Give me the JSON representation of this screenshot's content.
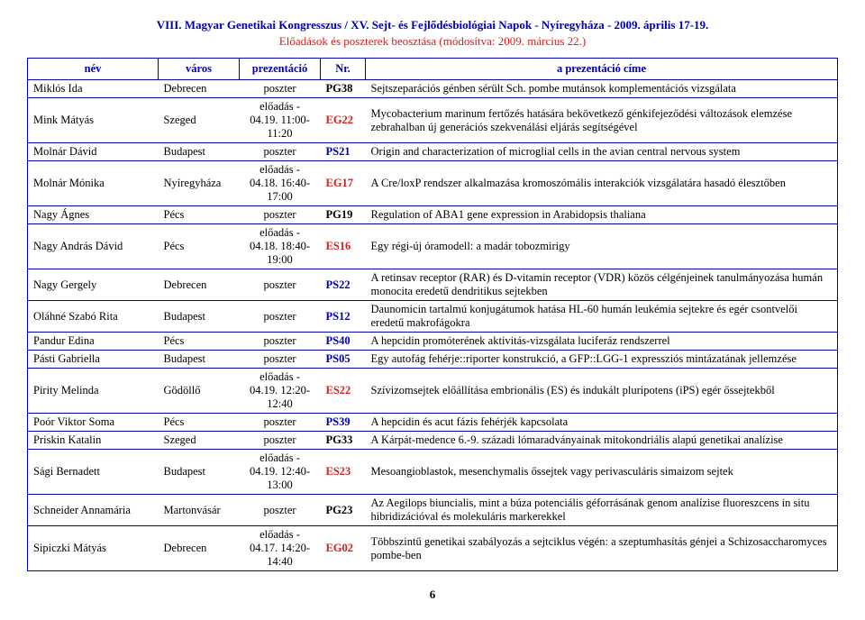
{
  "header": {
    "title": "VIII. Magyar Genetikai Kongresszus / XV. Sejt- és Fejlődésbiológiai Napok - Nyíregyháza - 2009. április 17-19.",
    "subtitle": "Előadások és poszterek beosztása (módosítva: 2009. március 22.)"
  },
  "columns": {
    "c1": "név",
    "c2": "város",
    "c3": "prezentáció",
    "c4": "Nr.",
    "c5": "a prezentáció címe"
  },
  "rows": [
    {
      "nev": "Miklós Ida",
      "varos": "Debrecen",
      "prez": "poszter",
      "nr": "PG38",
      "nrclass": "nr-black",
      "cim": "Sejtszeparációs génben sérült Sch. pombe mutánsok komplementációs vizsgálata"
    },
    {
      "nev": "Mink Mátyás",
      "varos": "Szeged",
      "prez": "előadás - 04.19. 11:00-11:20",
      "nr": "EG22",
      "nrclass": "nr-red",
      "cim": "Mycobacterium marinum fertőzés hatására bekövetkező génkifejeződési változások elemzése zebrahalban új generációs szekvenálási eljárás segítségével"
    },
    {
      "nev": "Molnár Dávid",
      "varos": "Budapest",
      "prez": "poszter",
      "nr": "PS21",
      "nrclass": "nr-blue",
      "cim": "Origin and characterization of microglial cells in the avian central nervous system"
    },
    {
      "nev": "Molnár Mónika",
      "varos": "Nyíregyháza",
      "prez": "előadás - 04.18. 16:40-17:00",
      "nr": "EG17",
      "nrclass": "nr-red",
      "cim": "A Cre/loxP rendszer alkalmazása kromoszómális interakciók vizsgálatára hasadó élesztőben"
    },
    {
      "nev": "Nagy Ágnes",
      "varos": "Pécs",
      "prez": "poszter",
      "nr": "PG19",
      "nrclass": "nr-black",
      "cim": "Regulation of ABA1 gene expression in Arabidopsis thaliana"
    },
    {
      "nev": "Nagy András Dávid",
      "varos": "Pécs",
      "prez": "előadás - 04.18. 18:40-19:00",
      "nr": "ES16",
      "nrclass": "nr-red",
      "cim": "Egy régi-új óramodell: a madár tobozmirigy"
    },
    {
      "nev": "Nagy Gergely",
      "varos": "Debrecen",
      "prez": "poszter",
      "nr": "PS22",
      "nrclass": "nr-blue",
      "cim": "A retinsav receptor (RAR) és D-vitamin receptor (VDR) közös célgénjeinek tanulmányozása humán monocita eredetű dendritikus sejtekben"
    },
    {
      "nev": "Oláhné Szabó Rita",
      "varos": "Budapest",
      "prez": "poszter",
      "nr": "PS12",
      "nrclass": "nr-blue",
      "cim": "Daunomicin tartalmú konjugátumok hatása HL-60 humán leukémia sejtekre és egér csontvelői eredetű makrofágokra"
    },
    {
      "nev": "Pandur Edina",
      "varos": "Pécs",
      "prez": "poszter",
      "nr": "PS40",
      "nrclass": "nr-blue",
      "cim": "A hepcidin promóterének aktivitás-vizsgálata luciferáz rendszerrel"
    },
    {
      "nev": "Pásti Gabriella",
      "varos": "Budapest",
      "prez": "poszter",
      "nr": "PS05",
      "nrclass": "nr-blue",
      "cim": "Egy autofág fehérje::riporter konstrukció, a GFP::LGG-1 expressziós mintázatának jellemzése"
    },
    {
      "nev": "Pirity Melinda",
      "varos": "Gödöllő",
      "prez": "előadás - 04.19. 12:20-12:40",
      "nr": "ES22",
      "nrclass": "nr-red",
      "cim": "Szívizomsejtek előállítása embrionális (ES) és indukált pluripotens (iPS) egér őssejtekből"
    },
    {
      "nev": "Poór Viktor Soma",
      "varos": "Pécs",
      "prez": "poszter",
      "nr": "PS39",
      "nrclass": "nr-blue",
      "cim": "A hepcidin és acut fázis fehérjék kapcsolata"
    },
    {
      "nev": "Priskin Katalin",
      "varos": "Szeged",
      "prez": "poszter",
      "nr": "PG33",
      "nrclass": "nr-black",
      "cim": "A Kárpát-medence 6.-9. századi lómaradványainak mitokondriális alapú genetikai analízise"
    },
    {
      "nev": "Sági Bernadett",
      "varos": "Budapest",
      "prez": "előadás - 04.19. 12:40-13:00",
      "nr": "ES23",
      "nrclass": "nr-red",
      "cim": "Mesoangioblastok, mesenchymalis őssejtek vagy perivasculáris simaizom sejtek"
    },
    {
      "nev": "Schneider Annamária",
      "varos": "Martonvásár",
      "prez": "poszter",
      "nr": "PG23",
      "nrclass": "nr-black",
      "cim": "Az Aegilops biuncialis, mint a búza potenciális géforrásának genom analízise fluoreszcens in situ hibridizációval és molekuláris markerekkel"
    },
    {
      "nev": "Sipiczki Mátyás",
      "varos": "Debrecen",
      "prez": "előadás - 04.17. 14:20-14:40",
      "nr": "EG02",
      "nrclass": "nr-red",
      "cim": "Többszintű genetikai szabályozás a sejtciklus végén: a szeptumhasítás génjei a Schizosaccharomyces pombe-ben"
    }
  ],
  "pagenum": "6"
}
